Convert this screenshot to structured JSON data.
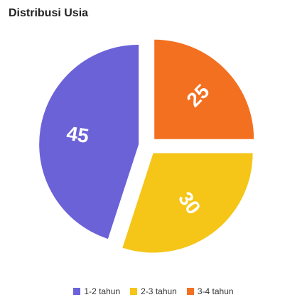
{
  "chart_data": {
    "type": "pie",
    "title": "Distribusi Usia",
    "categories": [
      "1-2 tahun",
      "2-3 tahun",
      "3-4 tahun"
    ],
    "values": [
      45,
      30,
      25
    ],
    "colors": [
      "#6B62D8",
      "#F5C518",
      "#F37021"
    ],
    "legend": "bottom",
    "labels_inside": true,
    "exploded": true
  }
}
